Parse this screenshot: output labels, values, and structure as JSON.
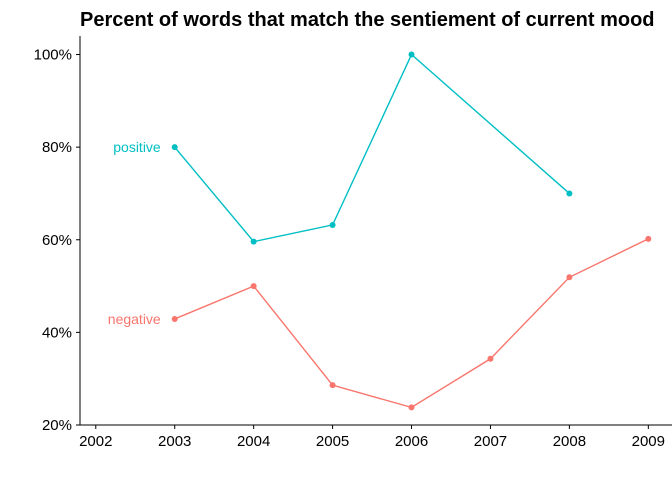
{
  "chart_data": {
    "type": "line",
    "title": "Percent of words that match the sentiement of current mood",
    "xlabel": "",
    "ylabel": "",
    "x_ticks": [
      "2002",
      "2003",
      "2004",
      "2005",
      "2006",
      "2007",
      "2008",
      "2009"
    ],
    "y_ticks": [
      "20%",
      "40%",
      "60%",
      "80%",
      "100%"
    ],
    "xlim": [
      2001.8,
      2009.3
    ],
    "ylim": [
      20,
      104
    ],
    "grid": false,
    "legend": "direct labels at left of lines",
    "series": [
      {
        "name": "positive",
        "color": "#00BFC4",
        "points": [
          {
            "x": 2003,
            "y": 80
          },
          {
            "x": 2004,
            "y": 59.6
          },
          {
            "x": 2005,
            "y": 63.2
          },
          {
            "x": 2006,
            "y": 100
          },
          {
            "x": 2008,
            "y": 70
          }
        ]
      },
      {
        "name": "negative",
        "color": "#F8766D",
        "points": [
          {
            "x": 2003,
            "y": 42.9
          },
          {
            "x": 2004,
            "y": 50
          },
          {
            "x": 2005,
            "y": 28.6
          },
          {
            "x": 2006,
            "y": 23.8
          },
          {
            "x": 2007,
            "y": 34.3
          },
          {
            "x": 2008,
            "y": 51.9
          },
          {
            "x": 2009,
            "y": 60.2
          }
        ]
      }
    ]
  }
}
